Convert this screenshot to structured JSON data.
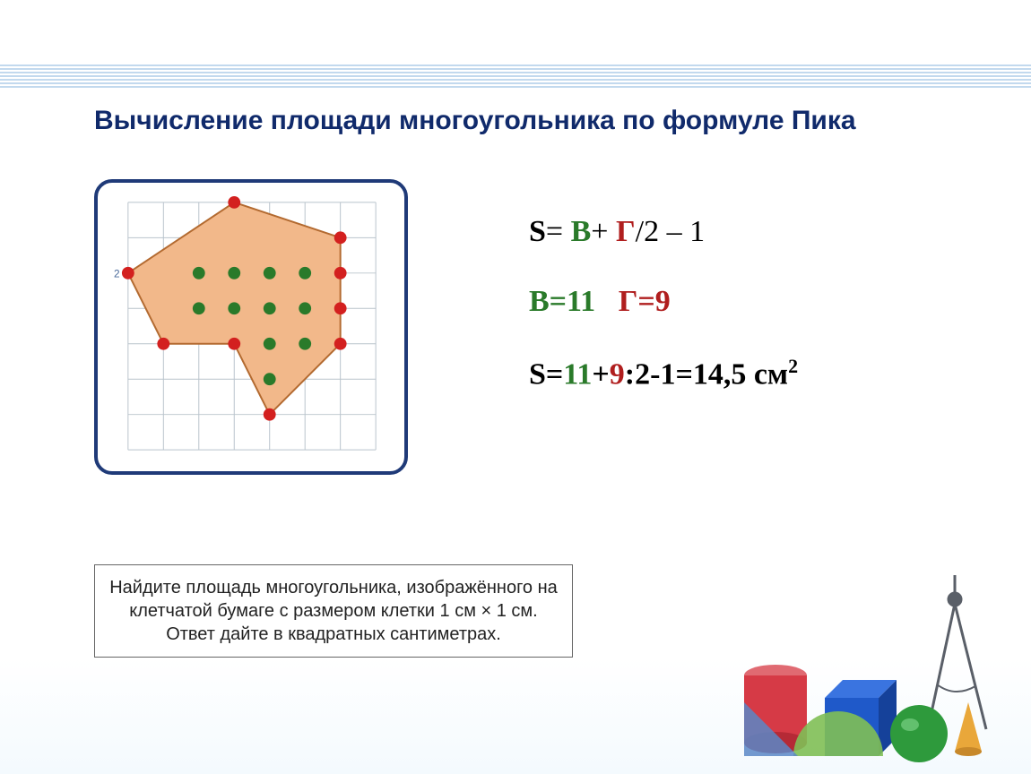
{
  "title": "Вычисление площади многоугольника по формуле Пика",
  "diagram": {
    "grid": {
      "cols": 7,
      "rows": 7,
      "cell": 40,
      "line_color": "#b9c3cc",
      "bg": "#ffffff"
    },
    "polygon": {
      "fill": "#f2b88a",
      "stroke": "#b36a30",
      "stroke_width": 2,
      "vertices_grid": [
        [
          3,
          0
        ],
        [
          6,
          1
        ],
        [
          6,
          4
        ],
        [
          4,
          6
        ],
        [
          3,
          4
        ],
        [
          1,
          4
        ],
        [
          0,
          2
        ]
      ]
    },
    "interior_points_grid": [
      [
        2,
        2
      ],
      [
        3,
        2
      ],
      [
        4,
        2
      ],
      [
        5,
        2
      ],
      [
        2,
        3
      ],
      [
        3,
        3
      ],
      [
        4,
        3
      ],
      [
        5,
        3
      ],
      [
        4,
        4
      ],
      [
        5,
        4
      ],
      [
        4,
        5
      ]
    ],
    "boundary_points_grid": [
      [
        3,
        0
      ],
      [
        6,
        1
      ],
      [
        6,
        2
      ],
      [
        6,
        3
      ],
      [
        6,
        4
      ],
      [
        4,
        6
      ],
      [
        3,
        4
      ],
      [
        1,
        4
      ],
      [
        0,
        2
      ]
    ],
    "interior_color": "#2a7a2a",
    "boundary_color": "#d3201f",
    "point_radius": 7,
    "axis_label": "2"
  },
  "formulas": {
    "main": {
      "S": "S",
      "eq1": "= ",
      "B": "В",
      "plus": "+ ",
      "G": "Г",
      "slash2": "/2 – 1"
    },
    "values": {
      "B": "В=11",
      "G": "Г=9"
    },
    "result_prefix": "S=",
    "result_b": "11",
    "result_plus": "+",
    "result_g": "9",
    "result_rest": ":2-1=14,5 см",
    "result_sup": "2"
  },
  "problem_text": "Найдите площадь многоугольника, изображённого на клетчатой бумаге с размером клетки 1 см × 1 см. Ответ дайте в квадратных сантиметрах.",
  "deco": {
    "cylinder": "#d63a46",
    "cube": "#1f59c9",
    "sphere": "#2e9a3c",
    "cone": "#e9a73a",
    "triangle_set": "#5a87c7",
    "protractor": "#7fbf55",
    "compass": "#5a5f68"
  }
}
